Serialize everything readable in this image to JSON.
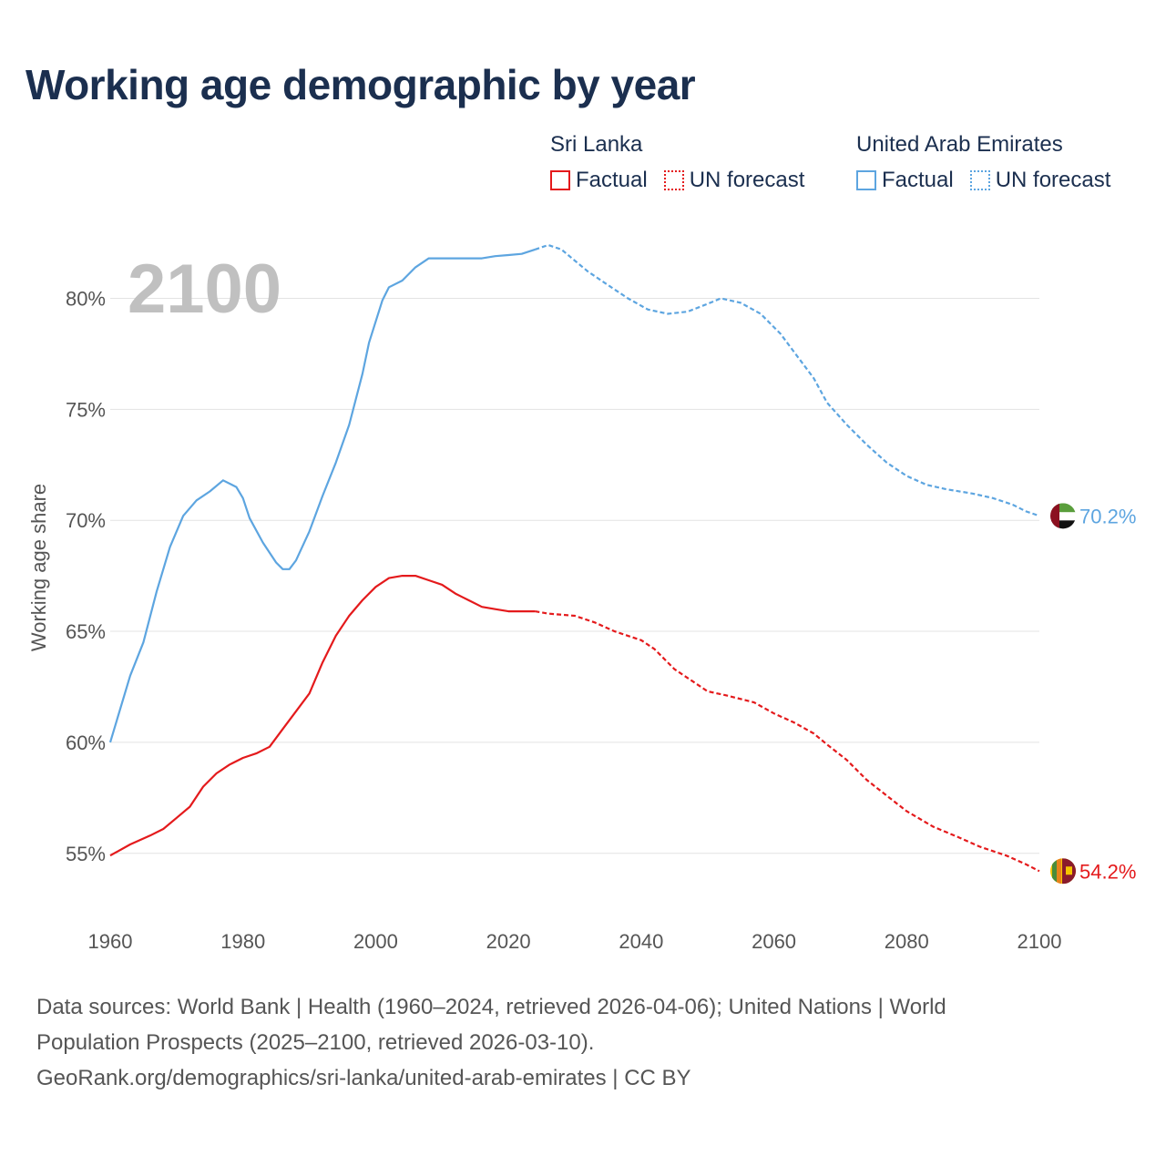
{
  "title": "Working age demographic by year",
  "legend": {
    "groups": [
      {
        "name": "Sri Lanka",
        "color": "#e41a1c",
        "factual_label": "Factual",
        "forecast_label": "UN forecast"
      },
      {
        "name": "United Arab Emirates",
        "color": "#5da5e0",
        "factual_label": "Factual",
        "forecast_label": "UN forecast"
      }
    ]
  },
  "year_display": "2100",
  "source": {
    "line1": "Data sources: World Bank | Health (1960–2024, retrieved 2026-04-06); United Nations | World",
    "line2": "Population Prospects (2025–2100, retrieved 2026-03-10).",
    "line3": "GeoRank.org/demographics/sri-lanka/united-arab-emirates | CC BY"
  },
  "chart_data": {
    "type": "line",
    "title": "Working age demographic by year",
    "xlabel": "",
    "ylabel": "Working age share",
    "xlim": [
      1960,
      2100
    ],
    "ylim": [
      52.2,
      84
    ],
    "x_ticks": [
      1960,
      1980,
      2000,
      2020,
      2040,
      2060,
      2080,
      2100
    ],
    "y_ticks": [
      55,
      60,
      65,
      70,
      75,
      80
    ],
    "y_tick_suffix": "%",
    "grid": true,
    "forecast_start": 2024,
    "series": [
      {
        "name": "Sri Lanka",
        "color": "#e41a1c",
        "end_label": "54.2%",
        "flag": "sri-lanka-flag",
        "points": [
          [
            1960,
            54.9
          ],
          [
            1963,
            55.4
          ],
          [
            1966,
            55.8
          ],
          [
            1968,
            56.1
          ],
          [
            1970,
            56.6
          ],
          [
            1972,
            57.1
          ],
          [
            1974,
            58.0
          ],
          [
            1976,
            58.6
          ],
          [
            1978,
            59.0
          ],
          [
            1980,
            59.3
          ],
          [
            1982,
            59.5
          ],
          [
            1984,
            59.8
          ],
          [
            1986,
            60.6
          ],
          [
            1988,
            61.4
          ],
          [
            1990,
            62.2
          ],
          [
            1992,
            63.6
          ],
          [
            1994,
            64.8
          ],
          [
            1996,
            65.7
          ],
          [
            1998,
            66.4
          ],
          [
            2000,
            67.0
          ],
          [
            2002,
            67.4
          ],
          [
            2004,
            67.5
          ],
          [
            2006,
            67.5
          ],
          [
            2008,
            67.3
          ],
          [
            2010,
            67.1
          ],
          [
            2012,
            66.7
          ],
          [
            2014,
            66.4
          ],
          [
            2016,
            66.1
          ],
          [
            2018,
            66.0
          ],
          [
            2020,
            65.9
          ],
          [
            2022,
            65.9
          ],
          [
            2024,
            65.9
          ],
          [
            2026,
            65.8
          ],
          [
            2028,
            65.75
          ],
          [
            2030,
            65.7
          ],
          [
            2033,
            65.4
          ],
          [
            2036,
            65.0
          ],
          [
            2040,
            64.6
          ],
          [
            2042,
            64.2
          ],
          [
            2045,
            63.3
          ],
          [
            2048,
            62.7
          ],
          [
            2050,
            62.3
          ],
          [
            2053,
            62.1
          ],
          [
            2057,
            61.8
          ],
          [
            2060,
            61.3
          ],
          [
            2063,
            60.9
          ],
          [
            2066,
            60.4
          ],
          [
            2068,
            59.9
          ],
          [
            2071,
            59.2
          ],
          [
            2074,
            58.3
          ],
          [
            2077,
            57.6
          ],
          [
            2080,
            56.9
          ],
          [
            2084,
            56.2
          ],
          [
            2088,
            55.7
          ],
          [
            2091,
            55.3
          ],
          [
            2095,
            54.9
          ],
          [
            2098,
            54.5
          ],
          [
            2100,
            54.2
          ]
        ]
      },
      {
        "name": "United Arab Emirates",
        "color": "#5da5e0",
        "end_label": "70.2%",
        "flag": "uae-flag",
        "points": [
          [
            1960,
            60.0
          ],
          [
            1963,
            63.0
          ],
          [
            1965,
            64.5
          ],
          [
            1967,
            66.8
          ],
          [
            1969,
            68.8
          ],
          [
            1971,
            70.2
          ],
          [
            1973,
            70.9
          ],
          [
            1975,
            71.3
          ],
          [
            1977,
            71.8
          ],
          [
            1979,
            71.5
          ],
          [
            1980,
            71.0
          ],
          [
            1981,
            70.1
          ],
          [
            1983,
            69.0
          ],
          [
            1985,
            68.1
          ],
          [
            1986,
            67.8
          ],
          [
            1987,
            67.8
          ],
          [
            1988,
            68.2
          ],
          [
            1990,
            69.5
          ],
          [
            1992,
            71.1
          ],
          [
            1994,
            72.6
          ],
          [
            1996,
            74.3
          ],
          [
            1998,
            76.6
          ],
          [
            1999,
            78.0
          ],
          [
            2001,
            79.9
          ],
          [
            2002,
            80.5
          ],
          [
            2004,
            80.8
          ],
          [
            2006,
            81.4
          ],
          [
            2008,
            81.8
          ],
          [
            2012,
            81.8
          ],
          [
            2016,
            81.8
          ],
          [
            2018,
            81.9
          ],
          [
            2020,
            81.95
          ],
          [
            2022,
            82.0
          ],
          [
            2024,
            82.2
          ],
          [
            2026,
            82.4
          ],
          [
            2028,
            82.2
          ],
          [
            2030,
            81.7
          ],
          [
            2032,
            81.2
          ],
          [
            2035,
            80.6
          ],
          [
            2038,
            80.0
          ],
          [
            2041,
            79.5
          ],
          [
            2044,
            79.3
          ],
          [
            2047,
            79.4
          ],
          [
            2050,
            79.75
          ],
          [
            2052,
            80.0
          ],
          [
            2055,
            79.8
          ],
          [
            2058,
            79.3
          ],
          [
            2061,
            78.4
          ],
          [
            2063,
            77.6
          ],
          [
            2066,
            76.4
          ],
          [
            2068,
            75.3
          ],
          [
            2071,
            74.3
          ],
          [
            2074,
            73.4
          ],
          [
            2077,
            72.6
          ],
          [
            2080,
            72.0
          ],
          [
            2083,
            71.6
          ],
          [
            2086,
            71.4
          ],
          [
            2090,
            71.2
          ],
          [
            2093,
            71.0
          ],
          [
            2096,
            70.7
          ],
          [
            2098,
            70.4
          ],
          [
            2100,
            70.2
          ]
        ]
      }
    ]
  }
}
